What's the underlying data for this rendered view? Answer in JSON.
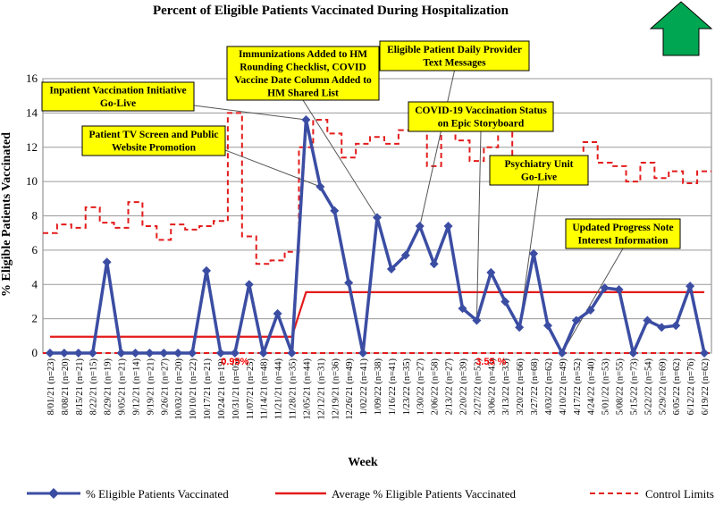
{
  "chart_data": {
    "type": "line",
    "title": "Percent of Eligible Patients Vaccinated During Hospitalization",
    "xlabel": "Week",
    "ylabel": "% Eligible  Patients Vaccinated",
    "ylim": [
      0,
      16
    ],
    "yticks": [
      0,
      2,
      4,
      6,
      8,
      10,
      12,
      14,
      16
    ],
    "categories": [
      "8/01/21 (n=23)",
      "8/08/21 (n=20)",
      "8/15/21 (n=21)",
      "8/22/21 (n=15)",
      "8/29/21 (n=19)",
      "9/05/21 (n=21)",
      "9/12/21 (n=14)",
      "9/19/21 (n=21)",
      "9/26/21 (n=27)",
      "10/03/21 (n=20)",
      "10/10/21 (n=22)",
      "10/17/21 (n=21)",
      "10/24/21 (n=19)",
      "10/31/21 (n=05)",
      "11/07/21 (n=25)",
      "11/14/21 (n=48)",
      "11/21/21 (n=44)",
      "11/28/21 (n=35)",
      "12/05/21 (n=44)",
      "12/12/21 (n=31)",
      "12/19/21 (n=36)",
      "12/26/21 (n=49)",
      "1/02/22 (n=41)",
      "1/09/22 (n=38)",
      "1/16/22 (n=41)",
      "1/23/22 (n=35)",
      "1/30/22 (n=27)",
      "2/06/22 (n=58)",
      "2/13/22 (n=27)",
      "2/20/22 (n=39)",
      "2/27/22 (n=52)",
      "3/06/22 (n=43)",
      "3/13/22 (n=33)",
      "3/20/22 (n=66)",
      "3/27/22 (n=68)",
      "4/03/22 (n=62)",
      "4/10/22 (n=49)",
      "4/17/22 (n=52)",
      "4/24/22 (n=40)",
      "5/01/22 (n=53)",
      "5/08/22 (n=55)",
      "5/15/22 (n=73)",
      "5/22/22 (n=54)",
      "5/29/22 (n=69)",
      "6/05/22 (n=62)",
      "6/12/22 (n=76)",
      "6/19/22 (n=62)"
    ],
    "series": [
      {
        "name": "% Eligible Patients Vaccinated",
        "color": "#3b4da3",
        "values": [
          0,
          0,
          0,
          0,
          5.3,
          0,
          0,
          0,
          0,
          0,
          0,
          4.8,
          0,
          0,
          4,
          0,
          2.3,
          0,
          13.6,
          9.7,
          8.3,
          4.1,
          0,
          7.9,
          4.9,
          5.7,
          7.4,
          5.2,
          7.4,
          2.6,
          1.9,
          4.7,
          3.0,
          1.5,
          5.8,
          1.6,
          0,
          1.9,
          2.5,
          3.8,
          3.7,
          0,
          1.9,
          1.5,
          1.6,
          3.9,
          0
        ]
      },
      {
        "name": "Average % Eligible Patients Vaccinated",
        "color": "#e31b1b",
        "values": [
          0.95,
          0.95,
          0.95,
          0.95,
          0.95,
          0.95,
          0.95,
          0.95,
          0.95,
          0.95,
          0.95,
          0.95,
          0.95,
          0.95,
          0.95,
          0.95,
          0.95,
          0.95,
          3.55,
          3.55,
          3.55,
          3.55,
          3.55,
          3.55,
          3.55,
          3.55,
          3.55,
          3.55,
          3.55,
          3.55,
          3.55,
          3.55,
          3.55,
          3.55,
          3.55,
          3.55,
          3.55,
          3.55,
          3.55,
          3.55,
          3.55,
          3.55,
          3.55,
          3.55,
          3.55,
          3.55,
          3.55
        ]
      },
      {
        "name": "Control Limits",
        "color": "#e31b1b",
        "upper": [
          7.0,
          7.5,
          7.3,
          8.5,
          7.6,
          7.3,
          8.8,
          7.4,
          6.6,
          7.5,
          7.2,
          7.4,
          7.7,
          14.0,
          6.8,
          5.2,
          5.4,
          5.9,
          12.0,
          13.6,
          12.8,
          11.4,
          12.2,
          12.6,
          12.2,
          13.0,
          13.6,
          10.9,
          13.2,
          12.4,
          11.2,
          12.0,
          13.0,
          11.1,
          11.0,
          11.2,
          11.2,
          11.4,
          12.3,
          11.1,
          10.9,
          10.0,
          11.1,
          10.2,
          10.6,
          9.9,
          10.6
        ],
        "lower": [
          0,
          0,
          0,
          0,
          0,
          0,
          0,
          0,
          0,
          0,
          0,
          0,
          0,
          0,
          0,
          0,
          0,
          0,
          0,
          0,
          0,
          0,
          0,
          0,
          0,
          0,
          0,
          0,
          0,
          0,
          0,
          0,
          0,
          0,
          0,
          0,
          0,
          0,
          0,
          0,
          0,
          0,
          0,
          0,
          0,
          0,
          0
        ]
      }
    ],
    "avg_labels": [
      {
        "text": "0.95%",
        "at": 13
      },
      {
        "text": "3.55 %",
        "at": 31
      }
    ],
    "annotations": [
      {
        "lines": [
          "Inpatient Vaccination Initiative",
          "Go-Live"
        ],
        "target": 18
      },
      {
        "lines": [
          "Patient TV Screen and Public",
          "Website Promotion"
        ],
        "target": 19
      },
      {
        "lines": [
          "Immunizations Added to HM",
          "Rounding Checklist, COVID",
          "Vaccine Date Column Added to",
          "HM Shared List"
        ],
        "target": 23
      },
      {
        "lines": [
          "Eligible Patient Daily Provider",
          "Text Messages"
        ],
        "target": 26
      },
      {
        "lines": [
          "COVID-19 Vaccination Status",
          "on Epic Storyboard"
        ],
        "target": 30
      },
      {
        "lines": [
          "Psychiatry Unit",
          "Go-Live"
        ],
        "target": 33
      },
      {
        "lines": [
          "Updated Progress Note",
          "Interest Information"
        ],
        "target": 36
      }
    ],
    "grid": true,
    "legend_position": "bottom"
  },
  "indicator": {
    "icon": "up-arrow-icon",
    "color": "#00a651"
  }
}
